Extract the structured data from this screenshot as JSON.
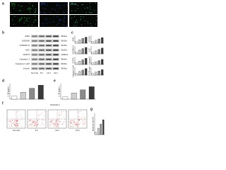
{
  "panels": {
    "a": {
      "label": "a",
      "columns": [
        "Nrf2",
        "DAPI",
        "Merge"
      ]
    },
    "b": {
      "label": "b",
      "groups": [
        "Normal",
        "6 h",
        "12 h",
        "24 h"
      ],
      "proteins": [
        {
          "name": "AIM2",
          "size": "39kDa"
        },
        {
          "name": "GSDMD",
          "size": "53kDa"
        },
        {
          "name": "GSDMD-N",
          "size": "31kDa"
        },
        {
          "name": "ASC",
          "size": "22kDa"
        },
        {
          "name": "NLRP3",
          "size": "118kDa"
        },
        {
          "name": "Caspase-1",
          "size": "45kDa"
        },
        {
          "name": "Caspase-1 p20",
          "size": "20kDa"
        },
        {
          "name": "β-actin",
          "size": "42kDa"
        }
      ]
    },
    "c": {
      "label": "c",
      "charts": [
        {
          "ylabel": "AIM2",
          "values": [
            1,
            1.8,
            2.5,
            3.1
          ],
          "ylim": [
            0,
            4
          ]
        },
        {
          "ylabel": "GSDMD",
          "values": [
            1,
            1.5,
            2.2,
            2.9
          ],
          "ylim": [
            0,
            4
          ]
        },
        {
          "ylabel": "GSDMD-N",
          "values": [
            1,
            2.0,
            2.7,
            3.3
          ],
          "ylim": [
            0,
            4
          ]
        },
        {
          "ylabel": "ASC",
          "values": [
            1,
            1.6,
            2.3,
            3.0
          ],
          "ylim": [
            0,
            4
          ]
        },
        {
          "ylabel": "NLRP3",
          "values": [
            1,
            1.7,
            2.4,
            3.2
          ],
          "ylim": [
            0,
            4
          ]
        },
        {
          "ylabel": "Caspase-1",
          "values": [
            1,
            1.4,
            2.0,
            2.6
          ],
          "ylim": [
            0,
            4
          ]
        },
        {
          "ylabel": "Caspase-1 p20",
          "values": [
            1,
            1.9,
            2.6,
            3.4
          ],
          "ylim": [
            0,
            4
          ]
        },
        {
          "ylabel": "ASC/β-actin",
          "values": [
            1,
            1.6,
            2.1,
            2.8
          ],
          "ylim": [
            0,
            4
          ]
        }
      ]
    },
    "d": {
      "label": "d",
      "ylabel": "IL-1β (pg/mL)",
      "values": [
        20,
        45,
        70,
        90
      ],
      "ylim": [
        0,
        100
      ]
    },
    "e": {
      "label": "e",
      "ylabel": "IL-18 (pg/mL)",
      "values": [
        15,
        40,
        60,
        80
      ],
      "ylim": [
        0,
        100
      ]
    },
    "f": {
      "label": "f",
      "title": "Nrf2/HO-1",
      "groups": [
        "Normal",
        "6 h",
        "12 h",
        "24 h"
      ]
    },
    "g": {
      "label": "g",
      "ylabel": "Apoptosis rate (%)",
      "values": [
        5,
        12,
        20,
        28
      ],
      "ylim": [
        0,
        40
      ]
    },
    "bar_colors": [
      "#ffffff",
      "#cfcfcf",
      "#8a8a8a",
      "#3a3a3a"
    ]
  }
}
